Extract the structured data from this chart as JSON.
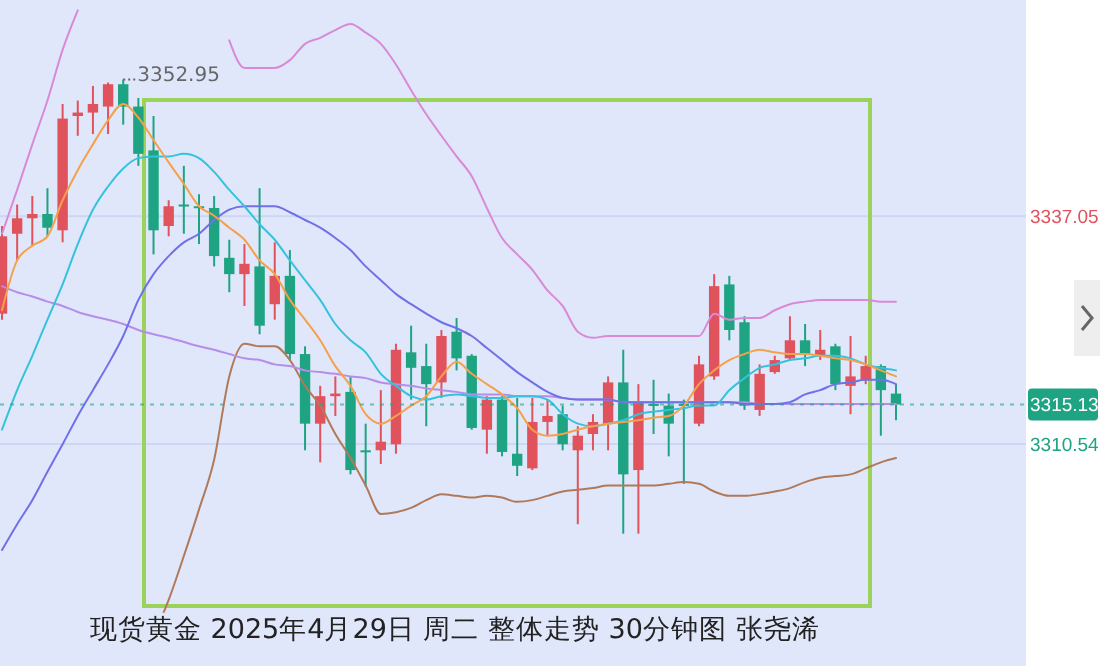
{
  "chart_data": {
    "type": "candlestick",
    "title": "现货黄金 2025年4月29日 周二 整体走势 30分钟图 张尧浠",
    "categories": [
      null,
      null,
      null,
      null,
      null,
      null,
      null,
      null,
      null,
      null,
      null,
      null,
      null,
      null,
      null,
      null,
      null,
      null,
      null,
      null,
      null,
      null,
      null,
      null,
      null,
      null,
      null,
      null,
      null,
      null,
      null,
      null,
      null,
      null,
      null,
      null,
      null,
      null,
      null,
      null,
      null,
      null,
      null,
      null,
      null,
      null,
      null,
      null,
      null,
      null,
      null,
      null,
      null,
      null,
      null,
      null,
      null,
      null,
      null,
      null
    ],
    "ohlc": [
      [
        3325.7,
        3335.9,
        3325.0,
        3334.7
      ],
      [
        3335.0,
        3338.4,
        3331.9,
        3336.8
      ],
      [
        3336.8,
        3339.4,
        3333.6,
        3337.3
      ],
      [
        3337.3,
        3340.3,
        3334.7,
        3335.7
      ],
      [
        3335.4,
        3350.1,
        3334.0,
        3348.4
      ],
      [
        3348.7,
        3350.5,
        3346.4,
        3349.1
      ],
      [
        3349.1,
        3352.2,
        3346.6,
        3350.1
      ],
      [
        3349.8,
        3352.6,
        3346.6,
        3352.4
      ],
      [
        3352.4,
        3352.95,
        3347.7,
        3349.8
      ],
      [
        3349.8,
        3350.8,
        3342.9,
        3344.3
      ],
      [
        3344.7,
        3348.7,
        3332.6,
        3335.4
      ],
      [
        3335.9,
        3338.9,
        3334.7,
        3338.2
      ],
      [
        3338.4,
        3342.9,
        3335.0,
        3338.2
      ],
      [
        3338.2,
        3339.6,
        3333.8,
        3338.0
      ],
      [
        3338.0,
        3339.4,
        3331.2,
        3332.4
      ],
      [
        3332.2,
        3334.3,
        3328.2,
        3330.3
      ],
      [
        3330.3,
        3333.8,
        3326.6,
        3331.5
      ],
      [
        3331.2,
        3340.3,
        3323.3,
        3324.3
      ],
      [
        3326.8,
        3334.0,
        3325.0,
        3330.1
      ],
      [
        3330.1,
        3333.1,
        3320.3,
        3321.0
      ],
      [
        3321.0,
        3321.9,
        3309.8,
        3312.9
      ],
      [
        3312.9,
        3317.3,
        3308.4,
        3316.1
      ],
      [
        3316.1,
        3318.4,
        3313.8,
        3316.4
      ],
      [
        3316.6,
        3318.4,
        3307.0,
        3307.5
      ],
      [
        3309.8,
        3312.9,
        3305.6,
        3309.6
      ],
      [
        3309.8,
        3316.8,
        3308.2,
        3310.8
      ],
      [
        3310.5,
        3322.2,
        3309.4,
        3321.5
      ],
      [
        3321.2,
        3324.3,
        3315.7,
        3319.4
      ],
      [
        3319.6,
        3322.2,
        3312.6,
        3317.5
      ],
      [
        3317.7,
        3323.8,
        3315.9,
        3323.1
      ],
      [
        3323.6,
        3325.2,
        3319.1,
        3320.5
      ],
      [
        3320.8,
        3321.0,
        3312.2,
        3312.4
      ],
      [
        3312.2,
        3316.1,
        3309.4,
        3315.7
      ],
      [
        3315.7,
        3316.1,
        3309.1,
        3309.6
      ],
      [
        3309.4,
        3315.9,
        3306.8,
        3308.0
      ],
      [
        3307.7,
        3315.9,
        3307.5,
        3313.1
      ],
      [
        3313.1,
        3315.7,
        3311.5,
        3313.8
      ],
      [
        3314.0,
        3315.0,
        3309.8,
        3310.5
      ],
      [
        3309.8,
        3312.6,
        3301.2,
        3311.5
      ],
      [
        3311.7,
        3314.0,
        3309.8,
        3313.1
      ],
      [
        3312.9,
        3318.4,
        3309.8,
        3317.7
      ],
      [
        3317.7,
        3321.5,
        3300.1,
        3307.0
      ],
      [
        3307.5,
        3317.5,
        3300.1,
        3315.4
      ],
      [
        3315.2,
        3318.0,
        3311.7,
        3315.0
      ],
      [
        3315.0,
        3316.4,
        3309.1,
        3312.9
      ],
      [
        3315.2,
        3315.7,
        3305.9,
        3315.0
      ],
      [
        3312.9,
        3320.8,
        3312.6,
        3319.8
      ],
      [
        3318.4,
        3330.3,
        3318.0,
        3328.9
      ],
      [
        3329.1,
        3330.1,
        3322.6,
        3323.8
      ],
      [
        3324.7,
        3325.4,
        3314.5,
        3315.0
      ],
      [
        3314.5,
        3319.8,
        3313.8,
        3318.7
      ],
      [
        3318.9,
        3320.8,
        3318.7,
        3320.3
      ],
      [
        3320.5,
        3325.4,
        3320.3,
        3322.6
      ],
      [
        3322.6,
        3324.5,
        3319.6,
        3321.0
      ],
      [
        3320.8,
        3323.8,
        3320.3,
        3321.5
      ],
      [
        3321.9,
        3322.2,
        3316.8,
        3317.5
      ],
      [
        3317.3,
        3323.1,
        3314.0,
        3318.4
      ],
      [
        3318.0,
        3320.8,
        3317.5,
        3319.6
      ],
      [
        3319.6,
        3319.8,
        3311.5,
        3316.8
      ],
      [
        3316.4,
        3317.5,
        3313.3,
        3315.13
      ]
    ],
    "colors": [
      "#e0525c",
      "#e0525c",
      "#e0525c",
      "#1ea383",
      "#e0525c",
      "#e0525c",
      "#e0525c",
      "#e0525c",
      "#1ea383",
      "#1ea383",
      "#1ea383",
      "#e0525c",
      "#1ea383",
      "#1ea383",
      "#1ea383",
      "#1ea383",
      "#e0525c",
      "#1ea383",
      "#e0525c",
      "#1ea383",
      "#1ea383",
      "#e0525c",
      "#e0525c",
      "#1ea383",
      "#1ea383",
      "#e0525c",
      "#e0525c",
      "#1ea383",
      "#1ea383",
      "#e0525c",
      "#1ea383",
      "#1ea383",
      "#e0525c",
      "#1ea383",
      "#1ea383",
      "#e0525c",
      "#e0525c",
      "#1ea383",
      "#e0525c",
      "#e0525c",
      "#e0525c",
      "#1ea383",
      "#e0525c",
      "#1ea383",
      "#1ea383",
      "#1ea383",
      "#e0525c",
      "#e0525c",
      "#1ea383",
      "#1ea383",
      "#e0525c",
      "#e0525c",
      "#e0525c",
      "#1ea383",
      "#e0525c",
      "#1ea383",
      "#e0525c",
      "#e0525c",
      "#1ea383",
      "#1ea383"
    ],
    "series": [
      {
        "type": "line",
        "color": "#d88ad6",
        "values": [
          3335.0,
          3340.1,
          3345.4,
          3350.5,
          3356.4,
          3361.0,
          null,
          null,
          null,
          null,
          null,
          null,
          null,
          null,
          null,
          3357.5,
          3354.3,
          3354.3,
          3354.3,
          3355.2,
          3357.1,
          3357.8,
          3358.7,
          3359.4,
          3358.4,
          3357.1,
          3354.7,
          3351.7,
          3348.9,
          3346.4,
          3344.0,
          3341.7,
          3338.0,
          3334.5,
          3332.6,
          3330.8,
          3328.4,
          3326.6,
          3323.6,
          3322.9,
          3323.1,
          3323.1,
          3323.1,
          3323.1,
          3323.1,
          3323.1,
          3323.1,
          3325.7,
          3325.0,
          3325.2,
          3325.2,
          3326.1,
          3326.8,
          3327.1,
          3327.3,
          3327.3,
          3327.3,
          3327.3,
          3327.1,
          3327.1
        ]
      },
      {
        "type": "line",
        "color": "#b07a5a",
        "values": [
          null,
          null,
          null,
          null,
          null,
          null,
          null,
          null,
          null,
          null,
          3288.2,
          3292.4,
          3297.5,
          3302.9,
          3308.7,
          3318.4,
          3322.2,
          3321.9,
          3321.9,
          3320.3,
          3317.3,
          3315.0,
          3311.7,
          3308.9,
          3305.7,
          3302.4,
          3302.6,
          3303.1,
          3304.0,
          3304.7,
          3304.5,
          3304.3,
          3304.5,
          3304.3,
          3303.8,
          3304.0,
          3304.5,
          3305.0,
          3305.2,
          3305.4,
          3305.7,
          3305.7,
          3305.7,
          3305.7,
          3305.9,
          3306.1,
          3305.9,
          3305.0,
          3304.5,
          3304.5,
          3304.7,
          3305.0,
          3305.4,
          3306.1,
          3306.6,
          3306.8,
          3307.0,
          3307.7,
          3308.4,
          3308.9
        ]
      },
      {
        "type": "line",
        "color": "#b48ee8",
        "values": [
          3328.9,
          3328.2,
          3327.7,
          3327.1,
          3326.6,
          3325.9,
          3325.4,
          3325.0,
          3324.5,
          3323.8,
          3323.3,
          3322.9,
          3322.4,
          3321.9,
          3321.5,
          3321.0,
          3320.5,
          3320.3,
          3319.8,
          3319.6,
          3319.1,
          3318.9,
          3318.7,
          3318.4,
          3318.2,
          3317.7,
          3317.5,
          3317.3,
          3317.0,
          3316.8,
          3316.6,
          3316.3,
          3316.3,
          3316.3,
          3316.1,
          3316.1,
          3316.1,
          3315.9,
          3315.7,
          3315.7,
          3315.7,
          3315.4,
          3315.4,
          3315.4,
          3315.4,
          3315.4,
          3315.4,
          3315.4,
          3315.4,
          3315.4,
          3315.2,
          3315.2,
          3315.2,
          3315.2,
          3315.2,
          3315.2,
          3315.2,
          3315.2,
          3315.2,
          3315.2
        ]
      },
      {
        "type": "line",
        "color": "#7070e8",
        "values": [
          3298.2,
          3301.2,
          3304.0,
          3307.3,
          3310.5,
          3313.8,
          3316.8,
          3319.8,
          3323.1,
          3327.3,
          3330.3,
          3332.4,
          3334.0,
          3335.0,
          3336.6,
          3337.8,
          3338.2,
          3338.2,
          3338.2,
          3337.5,
          3336.6,
          3335.7,
          3334.5,
          3333.1,
          3331.2,
          3329.6,
          3328.0,
          3326.8,
          3325.7,
          3324.7,
          3324.0,
          3323.1,
          3321.7,
          3320.3,
          3318.9,
          3317.7,
          3316.6,
          3315.9,
          3315.7,
          3315.7,
          3315.7,
          3315.4,
          3315.4,
          3315.4,
          3315.4,
          3315.4,
          3315.4,
          3315.4,
          3315.4,
          3315.2,
          3315.2,
          3315.2,
          3315.4,
          3316.3,
          3316.8,
          3317.5,
          3317.7,
          3318.0,
          3318.0,
          3317.5
        ]
      },
      {
        "type": "line",
        "color": "#35c2dc",
        "values": [
          3312.2,
          3316.8,
          3320.8,
          3325.0,
          3329.1,
          3333.8,
          3337.8,
          3340.5,
          3342.6,
          3343.8,
          3344.0,
          3344.0,
          3344.3,
          3343.8,
          3342.2,
          3340.1,
          3338.2,
          3336.1,
          3334.3,
          3331.9,
          3329.6,
          3327.3,
          3324.5,
          3322.6,
          3321.2,
          3318.7,
          3317.3,
          3316.1,
          3315.7,
          3316.1,
          3316.3,
          3316.1,
          3315.9,
          3315.9,
          3316.1,
          3316.1,
          3315.7,
          3314.0,
          3312.9,
          3312.6,
          3312.9,
          3313.3,
          3314.0,
          3314.3,
          3314.5,
          3314.7,
          3315.0,
          3315.0,
          3316.8,
          3318.2,
          3319.4,
          3319.8,
          3320.3,
          3320.5,
          3320.8,
          3320.8,
          3320.5,
          3319.8,
          3319.4,
          3319.1
        ]
      },
      {
        "type": "line",
        "color": "#f5a04a",
        "values": [
          3326.1,
          3331.9,
          3333.6,
          3334.7,
          3338.9,
          3342.4,
          3345.4,
          3348.2,
          3350.1,
          3348.5,
          3345.9,
          3343.3,
          3340.8,
          3338.2,
          3337.1,
          3335.7,
          3334.3,
          3331.9,
          3330.3,
          3327.3,
          3325.0,
          3322.6,
          3319.6,
          3317.3,
          3314.0,
          3312.9,
          3313.8,
          3315.0,
          3316.1,
          3318.4,
          3320.1,
          3318.7,
          3317.5,
          3316.3,
          3314.7,
          3312.2,
          3311.5,
          3311.7,
          3312.2,
          3312.6,
          3312.9,
          3313.1,
          3313.3,
          3313.6,
          3313.8,
          3315.0,
          3317.5,
          3319.1,
          3320.3,
          3321.0,
          3321.5,
          3321.2,
          3321.0,
          3321.0,
          3320.8,
          3320.5,
          3320.3,
          3319.8,
          3319.1,
          3318.4
        ]
      }
    ],
    "ylim": [
      3284.7,
      3362.2
    ],
    "yticks": [
      3310.54,
      3337.05
    ],
    "ref_lines": [
      {
        "axis": "y",
        "value": 3315.13,
        "label": "3315.13",
        "color": "#1ea383",
        "line_style": "dotted"
      }
    ],
    "annotations": [
      "3352.95"
    ],
    "grid": "y",
    "tick_labels": "y"
  }
}
